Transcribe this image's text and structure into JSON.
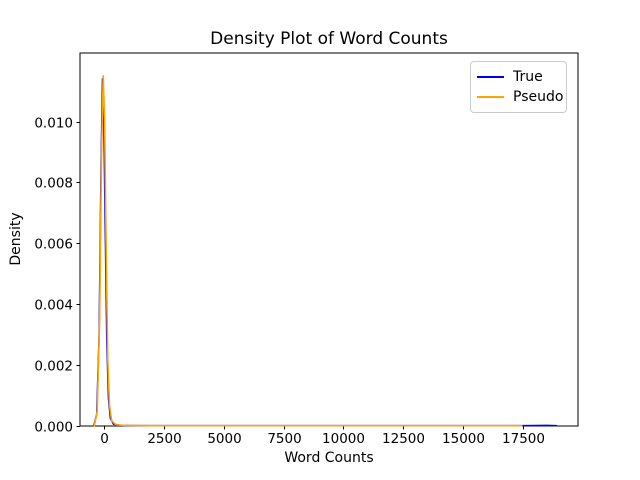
{
  "figure": {
    "title": "Density Plot of Word Counts",
    "xlabel": "Word Counts",
    "ylabel": "Density"
  },
  "legend": {
    "items": [
      {
        "label": "True",
        "color": "#0000ee"
      },
      {
        "label": "Pseudo",
        "color": "#ffa500"
      }
    ]
  },
  "chart_data": {
    "type": "line",
    "title": "Density Plot of Word Counts",
    "xlabel": "Word Counts",
    "ylabel": "Density",
    "xlim": [
      -1000,
      19800
    ],
    "ylim": [
      0,
      0.01225
    ],
    "x_ticks": [
      0,
      2500,
      5000,
      7500,
      10000,
      12500,
      15000,
      17500
    ],
    "x_tick_labels": [
      "0",
      "2500",
      "5000",
      "7500",
      "10000",
      "12500",
      "15000",
      "17500"
    ],
    "y_ticks": [
      0,
      0.002,
      0.004,
      0.006,
      0.008,
      0.01
    ],
    "y_tick_labels": [
      "0.000",
      "0.002",
      "0.004",
      "0.006",
      "0.008",
      "0.010"
    ],
    "grid": false,
    "legend_position": "upper right",
    "axis_color": "#000000",
    "line_width": 1.6,
    "series": [
      {
        "name": "True",
        "color": "#0000ee",
        "points": [
          [
            -420,
            1e-05
          ],
          [
            -300,
            0.0004
          ],
          [
            -200,
            0.003
          ],
          [
            -120,
            0.0085
          ],
          [
            -60,
            0.0114
          ],
          [
            -10,
            0.0104
          ],
          [
            50,
            0.0068
          ],
          [
            120,
            0.0028
          ],
          [
            190,
            0.0009
          ],
          [
            270,
            0.00025
          ],
          [
            400,
            6e-05
          ],
          [
            700,
            2e-05
          ],
          [
            1500,
            1e-05
          ],
          [
            5000,
            1e-05
          ],
          [
            10000,
            1e-05
          ],
          [
            15000,
            1e-05
          ],
          [
            17500,
            1e-05
          ],
          [
            18500,
            2e-05
          ],
          [
            18900,
            1e-05
          ]
        ]
      },
      {
        "name": "Pseudo",
        "color": "#ffa500",
        "points": [
          [
            -400,
            1e-05
          ],
          [
            -280,
            0.0005
          ],
          [
            -180,
            0.0035
          ],
          [
            -100,
            0.009
          ],
          [
            -30,
            0.0115
          ],
          [
            30,
            0.01
          ],
          [
            90,
            0.006
          ],
          [
            160,
            0.0022
          ],
          [
            230,
            0.0007
          ],
          [
            320,
            0.00018
          ],
          [
            500,
            4e-05
          ],
          [
            900,
            2e-05
          ],
          [
            2000,
            1e-05
          ],
          [
            5000,
            1e-05
          ],
          [
            10000,
            1e-05
          ],
          [
            15000,
            1e-05
          ],
          [
            17450,
            1e-05
          ]
        ]
      }
    ]
  }
}
